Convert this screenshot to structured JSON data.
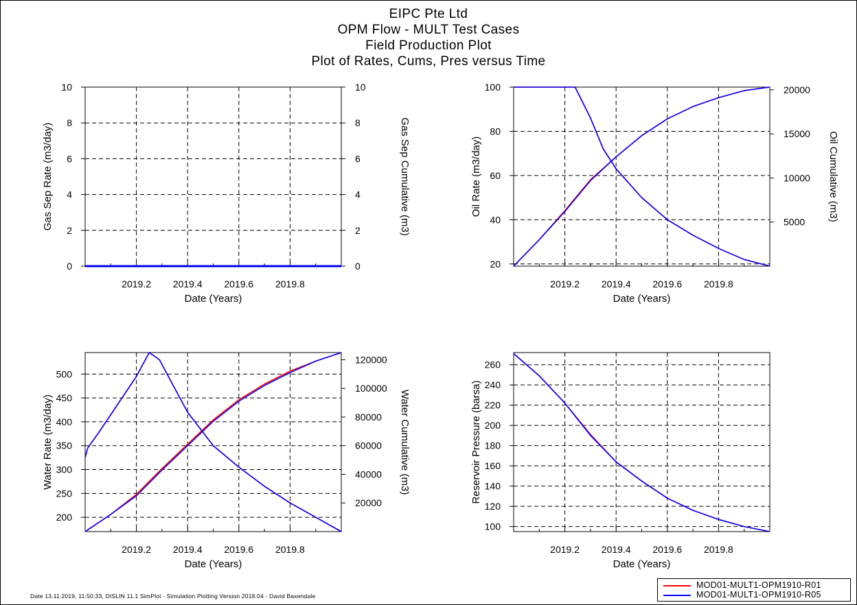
{
  "header": {
    "line1": "EIPC Pte Ltd",
    "line2": "OPM Flow - MULT Test Cases",
    "line3": "Field Production Plot",
    "line4": "Plot of Rates, Cums, Pres versus Time"
  },
  "footer": "Date 13.11.2019, 11:50:33, DISLIN 11.1 SimPlot - Simulation Plotting Version 2018.04 - David Baxendale",
  "legend": [
    {
      "label": "MOD01-MULT1-OPM1910-R01",
      "color": "#ff0000"
    },
    {
      "label": "MOD01-MULT1-OPM1910-R05",
      "color": "#0000ff"
    }
  ],
  "chart_data": [
    {
      "type": "line",
      "xlabel": "Date (Years)",
      "ylabel": "Gas Sep Rate (m3/day)",
      "y2label": "Gas Sep Cumulative (m3)",
      "xlim": [
        2019.0,
        2020.0
      ],
      "ylim": [
        0,
        10
      ],
      "y2lim": [
        0,
        10
      ],
      "xticks": [
        "2019.2",
        "2019.4",
        "2019.6",
        "2019.8"
      ],
      "yticks": [
        "0",
        "2",
        "4",
        "6",
        "8",
        "10"
      ],
      "y2ticks": [
        "0",
        "2",
        "4",
        "6",
        "8",
        "10"
      ],
      "grid": true,
      "series": [
        {
          "name": "MOD01-MULT1-OPM1910-R01",
          "axis": "left",
          "color": "#ff0000",
          "x": [
            2019.0,
            2020.0
          ],
          "y": [
            0,
            0
          ]
        },
        {
          "name": "MOD01-MULT1-OPM1910-R05",
          "axis": "left",
          "color": "#0000ff",
          "x": [
            2019.0,
            2020.0
          ],
          "y": [
            0,
            0
          ]
        }
      ]
    },
    {
      "type": "line",
      "xlabel": "Date (Years)",
      "ylabel": "Oil Rate (m3/day)",
      "y2label": "Oil Cumulative (m3)",
      "xlim": [
        2019.0,
        2020.0
      ],
      "ylim": [
        19,
        100
      ],
      "y2lim": [
        0,
        20300
      ],
      "xticks": [
        "2019.2",
        "2019.4",
        "2019.6",
        "2019.8"
      ],
      "yticks": [
        "20",
        "40",
        "60",
        "80",
        "100"
      ],
      "y2ticks": [
        "5000",
        "10000",
        "15000",
        "20000"
      ],
      "grid": true,
      "series": [
        {
          "name": "MOD01-MULT1-OPM1910-R01",
          "axis": "left",
          "color": "#ff0000",
          "x": [
            2019.0,
            2019.24,
            2019.3,
            2019.35,
            2019.4,
            2019.5,
            2019.6,
            2019.7,
            2019.8,
            2019.9,
            2020.0
          ],
          "y": [
            100,
            100,
            86,
            72,
            63,
            50,
            40,
            33,
            27,
            22,
            19
          ]
        },
        {
          "name": "MOD01-MULT1-OPM1910-R01",
          "axis": "right",
          "color": "#ff0000",
          "x": [
            2019.0,
            2019.1,
            2019.2,
            2019.3,
            2019.4,
            2019.5,
            2019.6,
            2019.7,
            2019.8,
            2019.9,
            2020.0
          ],
          "y": [
            0,
            3000,
            6300,
            9800,
            12400,
            14800,
            16700,
            18100,
            19100,
            19900,
            20300
          ]
        },
        {
          "name": "MOD01-MULT1-OPM1910-R05",
          "axis": "left",
          "color": "#0000ff",
          "x": [
            2019.0,
            2019.24,
            2019.3,
            2019.35,
            2019.4,
            2019.5,
            2019.6,
            2019.7,
            2019.8,
            2019.9,
            2020.0
          ],
          "y": [
            100,
            100,
            86,
            72,
            63,
            50,
            40,
            33,
            27,
            22,
            19
          ]
        },
        {
          "name": "MOD01-MULT1-OPM1910-R05",
          "axis": "right",
          "color": "#0000ff",
          "x": [
            2019.0,
            2019.1,
            2019.2,
            2019.3,
            2019.4,
            2019.5,
            2019.6,
            2019.7,
            2019.8,
            2019.9,
            2020.0
          ],
          "y": [
            0,
            3000,
            6200,
            9700,
            12400,
            14800,
            16700,
            18100,
            19100,
            19900,
            20300
          ]
        }
      ]
    },
    {
      "type": "line",
      "xlabel": "Date (Years)",
      "ylabel": "Water Rate (m3/day)",
      "y2label": "Water Cumulative (m3)",
      "xlim": [
        2019.0,
        2020.0
      ],
      "ylim": [
        170,
        545
      ],
      "y2lim": [
        0,
        125000
      ],
      "xticks": [
        "2019.2",
        "2019.4",
        "2019.6",
        "2019.8"
      ],
      "yticks": [
        "200",
        "250",
        "300",
        "350",
        "400",
        "450",
        "500"
      ],
      "y2ticks": [
        "20000",
        "40000",
        "60000",
        "80000",
        "100000",
        "120000"
      ],
      "grid": true,
      "series": [
        {
          "name": "MOD01-MULT1-OPM1910-R01",
          "axis": "left",
          "color": "#ff0000",
          "x": [
            2019.0,
            2019.01,
            2019.05,
            2019.1,
            2019.15,
            2019.2,
            2019.25,
            2019.29,
            2019.35,
            2019.4,
            2019.5,
            2019.6,
            2019.7,
            2019.8,
            2019.9,
            2020.0
          ],
          "y": [
            325,
            345,
            375,
            415,
            455,
            495,
            545,
            530,
            470,
            420,
            350,
            305,
            265,
            230,
            200,
            170
          ]
        },
        {
          "name": "MOD01-MULT1-OPM1910-R01",
          "axis": "right",
          "color": "#ff0000",
          "x": [
            2019.0,
            2019.1,
            2019.2,
            2019.3,
            2019.4,
            2019.5,
            2019.6,
            2019.7,
            2019.8,
            2019.9,
            2020.0
          ],
          "y": [
            0,
            12000,
            26000,
            44000,
            61000,
            78000,
            92000,
            103000,
            112000,
            119000,
            125000
          ]
        },
        {
          "name": "MOD01-MULT1-OPM1910-R05",
          "axis": "left",
          "color": "#0000ff",
          "x": [
            2019.0,
            2019.01,
            2019.05,
            2019.1,
            2019.15,
            2019.2,
            2019.25,
            2019.29,
            2019.35,
            2019.4,
            2019.5,
            2019.6,
            2019.7,
            2019.8,
            2019.9,
            2020.0
          ],
          "y": [
            325,
            345,
            375,
            415,
            455,
            495,
            545,
            530,
            470,
            420,
            350,
            305,
            265,
            230,
            200,
            170
          ]
        },
        {
          "name": "MOD01-MULT1-OPM1910-R05",
          "axis": "right",
          "color": "#0000ff",
          "x": [
            2019.0,
            2019.1,
            2019.2,
            2019.3,
            2019.4,
            2019.5,
            2019.6,
            2019.7,
            2019.8,
            2019.9,
            2020.0
          ],
          "y": [
            0,
            12000,
            25000,
            43000,
            60000,
            77000,
            91000,
            102000,
            111000,
            119000,
            125000
          ]
        }
      ]
    },
    {
      "type": "line",
      "xlabel": "Date (Years)",
      "ylabel": "Reservoir Pressure (barsa)",
      "xlim": [
        2019.0,
        2020.0
      ],
      "ylim": [
        95,
        272
      ],
      "xticks": [
        "2019.2",
        "2019.4",
        "2019.6",
        "2019.8"
      ],
      "yticks": [
        "100",
        "120",
        "140",
        "160",
        "180",
        "200",
        "220",
        "240",
        "260"
      ],
      "grid": true,
      "series": [
        {
          "name": "MOD01-MULT1-OPM1910-R01",
          "axis": "left",
          "color": "#ff0000",
          "x": [
            2019.0,
            2019.1,
            2019.2,
            2019.3,
            2019.4,
            2019.5,
            2019.6,
            2019.7,
            2019.8,
            2019.9,
            2020.0
          ],
          "y": [
            271,
            249,
            222,
            191,
            164,
            145,
            128,
            116,
            107,
            100,
            95
          ]
        },
        {
          "name": "MOD01-MULT1-OPM1910-R05",
          "axis": "left",
          "color": "#0000ff",
          "x": [
            2019.0,
            2019.1,
            2019.2,
            2019.3,
            2019.4,
            2019.5,
            2019.6,
            2019.7,
            2019.8,
            2019.9,
            2020.0
          ],
          "y": [
            271,
            249,
            222,
            190,
            164,
            145,
            128,
            116,
            107,
            100,
            95
          ]
        }
      ]
    }
  ]
}
